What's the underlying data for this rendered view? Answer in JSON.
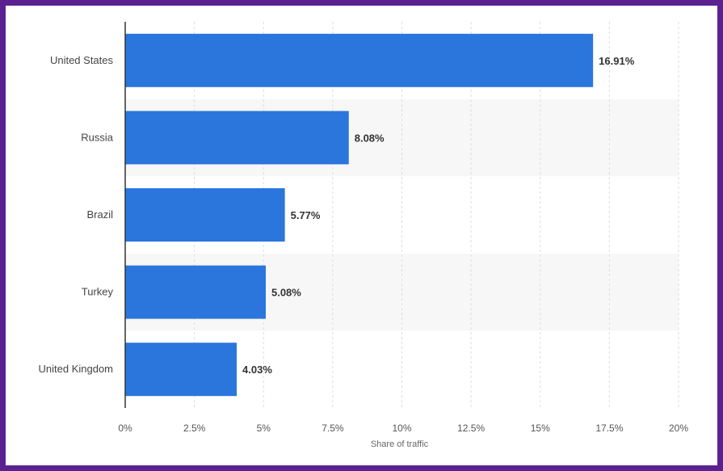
{
  "chart_data": {
    "type": "bar",
    "orientation": "horizontal",
    "categories": [
      "United States",
      "Russia",
      "Brazil",
      "Turkey",
      "United Kingdom"
    ],
    "values": [
      16.91,
      8.08,
      5.77,
      5.08,
      4.03
    ],
    "value_labels": [
      "16.91%",
      "8.08%",
      "5.77%",
      "5.08%",
      "4.03%"
    ],
    "xlabel": "Share of traffic",
    "ylabel": "",
    "xlim": [
      0,
      20
    ],
    "ticks": [
      0,
      2.5,
      5,
      7.5,
      10,
      12.5,
      15,
      17.5,
      20
    ],
    "tick_labels": [
      "0%",
      "2.5%",
      "5%",
      "7.5%",
      "10%",
      "12.5%",
      "15%",
      "17.5%",
      "20%"
    ],
    "grid": true,
    "legend": "none",
    "colors": {
      "bar": "#2a76dd",
      "band": "#f7f7f7",
      "grid": "#dddddd",
      "axis": "#333333",
      "frame": "#5b2191"
    }
  }
}
